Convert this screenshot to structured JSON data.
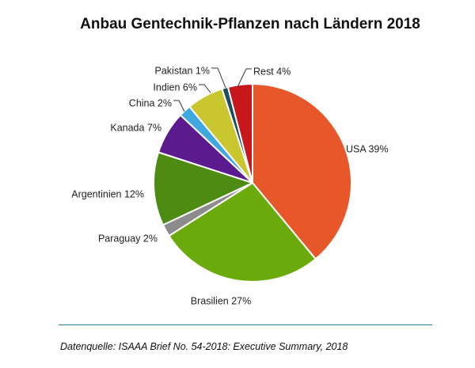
{
  "chart_data": {
    "type": "pie",
    "title": "Anbau Gentechnik-Pflanzen nach Ländern 2018",
    "slices": [
      {
        "label": "USA 39%",
        "value": 39,
        "color": "#E8572A"
      },
      {
        "label": "Brasilien 27%",
        "value": 27,
        "color": "#6AAA0A"
      },
      {
        "label": "Paraguay 2%",
        "value": 2,
        "color": "#8C8C8C"
      },
      {
        "label": "Argentinien 12%",
        "value": 12,
        "color": "#4D8B12"
      },
      {
        "label": "Kanada 7%",
        "value": 7,
        "color": "#5B1B8F"
      },
      {
        "label": "China 2%",
        "value": 2,
        "color": "#3FA9DF"
      },
      {
        "label": "Indien 6%",
        "value": 6,
        "color": "#C9C630"
      },
      {
        "label": "Pakistan 1%",
        "value": 1,
        "color": "#1F4C5C"
      },
      {
        "label": "Rest 4%",
        "value": 4,
        "color": "#C8161D"
      }
    ],
    "start_angle": "12 o'clock",
    "direction": "clockwise",
    "legend": "none"
  },
  "footer": {
    "source": "Datenquelle: ISAAA Brief No. 54-2018: Executive Summary, 2018"
  }
}
